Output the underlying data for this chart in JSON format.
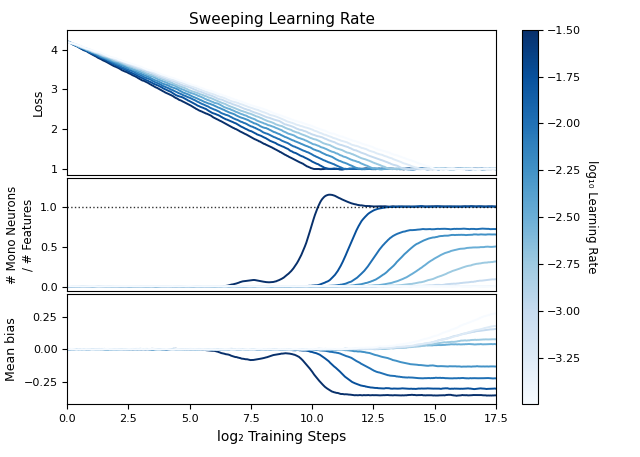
{
  "title": "Sweeping Learning Rate",
  "xlabel": "log₂ Training Steps",
  "ylabel_loss": "Loss",
  "ylabel_mono": "# Mono Neurons\n/ # Features",
  "ylabel_bias": "Mean bias",
  "colorbar_label": "log₁₀ Learning Rate",
  "xmin": 0.0,
  "xmax": 17.5,
  "loss_ylim": [
    0.85,
    4.5
  ],
  "mono_ylim": [
    -0.05,
    1.35
  ],
  "bias_ylim": [
    -0.42,
    0.42
  ],
  "lr_values": [
    -1.5,
    -1.75,
    -2.0,
    -2.25,
    -2.5,
    -2.75,
    -3.0,
    -3.25,
    -3.5
  ],
  "colorbar_vmin": -3.5,
  "colorbar_vmax": -1.5,
  "colorbar_ticks": [
    -1.5,
    -1.75,
    -2.0,
    -2.25,
    -2.5,
    -2.75,
    -3.0,
    -3.25
  ]
}
